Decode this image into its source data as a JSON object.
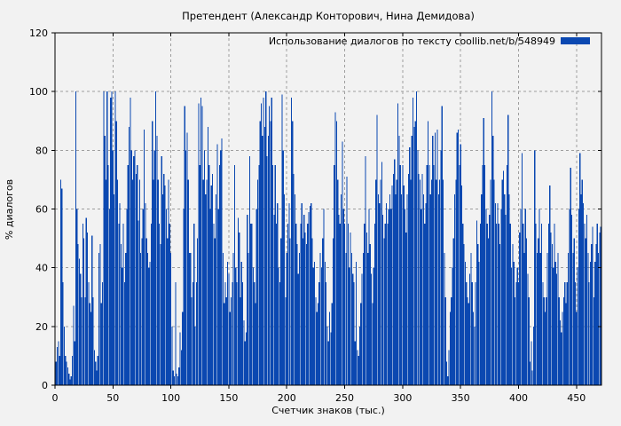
{
  "chart_data": {
    "type": "bar",
    "title": "Претендент (Александр Конторович, Нина Демидова)",
    "legend_label": "Использование диалогов по тексту  coollib.net/b/548949",
    "xlabel": "Счетчик знаков (тыс.)",
    "ylabel": "% диалогов",
    "legend_position": "top-right",
    "grid": true,
    "xlim": [
      0,
      471.6
    ],
    "ylim": [
      0,
      120
    ],
    "x_ticks": [
      0,
      50,
      100,
      150,
      200,
      250,
      300,
      350,
      400,
      450
    ],
    "y_ticks": [
      0,
      20,
      40,
      60,
      80,
      100,
      120
    ],
    "x_start": 0,
    "x_step": 1,
    "colors": {
      "bar": "#0B48B1",
      "background": "#f2f2f2",
      "grid": "#9e9e9e",
      "axis": "#000000",
      "text": "#000000"
    },
    "values": [
      5,
      8,
      13,
      15,
      10,
      70,
      67,
      35,
      20,
      10,
      8,
      6,
      4,
      2,
      3,
      10,
      27,
      15,
      100,
      60,
      48,
      43,
      38,
      30,
      55,
      50,
      30,
      57,
      52,
      35,
      28,
      25,
      51,
      30,
      12,
      8,
      5,
      10,
      45,
      48,
      28,
      35,
      100,
      85,
      70,
      100,
      75,
      60,
      98,
      100,
      80,
      65,
      100,
      90,
      70,
      55,
      62,
      48,
      40,
      55,
      35,
      45,
      60,
      75,
      88,
      98,
      80,
      70,
      78,
      80,
      72,
      75,
      56,
      70,
      45,
      50,
      60,
      87,
      62,
      50,
      45,
      40,
      42,
      55,
      90,
      70,
      80,
      100,
      85,
      70,
      55,
      48,
      78,
      65,
      72,
      68,
      60,
      50,
      70,
      55,
      45,
      20,
      5,
      3,
      35,
      4,
      3,
      6,
      18,
      12,
      25,
      60,
      95,
      80,
      86,
      70,
      45,
      45,
      30,
      35,
      55,
      20,
      35,
      50,
      96,
      75,
      98,
      95,
      70,
      80,
      65,
      70,
      88,
      75,
      60,
      68,
      72,
      55,
      50,
      65,
      82,
      60,
      75,
      80,
      84,
      45,
      28,
      35,
      30,
      42,
      38,
      25,
      30,
      35,
      45,
      75,
      40,
      35,
      57,
      52,
      30,
      42,
      35,
      22,
      15,
      18,
      58,
      45,
      78,
      55,
      55,
      40,
      35,
      28,
      60,
      70,
      75,
      90,
      96,
      85,
      98,
      88,
      100,
      78,
      85,
      95,
      90,
      98,
      75,
      58,
      75,
      55,
      62,
      40,
      35,
      50,
      99,
      80,
      65,
      30,
      45,
      55,
      62,
      50,
      98,
      90,
      72,
      65,
      55,
      48,
      38,
      45,
      55,
      62,
      50,
      58,
      52,
      48,
      55,
      59,
      61,
      62,
      50,
      40,
      42,
      30,
      25,
      28,
      35,
      45,
      40,
      50,
      60,
      42,
      35,
      20,
      15,
      25,
      18,
      28,
      50,
      75,
      93,
      90,
      70,
      58,
      55,
      65,
      83,
      60,
      55,
      45,
      71,
      55,
      40,
      52,
      45,
      38,
      35,
      15,
      42,
      12,
      10,
      20,
      28,
      38,
      45,
      55,
      78,
      52,
      45,
      60,
      48,
      38,
      28,
      40,
      55,
      70,
      92,
      65,
      62,
      70,
      76,
      58,
      50,
      55,
      62,
      55,
      60,
      65,
      60,
      68,
      72,
      77,
      65,
      70,
      96,
      85,
      75,
      65,
      75,
      68,
      60,
      52,
      65,
      72,
      81,
      70,
      85,
      98,
      88,
      90,
      100,
      80,
      72,
      70,
      60,
      72,
      65,
      55,
      62,
      75,
      90,
      75,
      65,
      70,
      85,
      75,
      86,
      70,
      87,
      65,
      70,
      80,
      95,
      70,
      45,
      30,
      8,
      3,
      12,
      25,
      30,
      40,
      50,
      65,
      70,
      86,
      87,
      75,
      82,
      68,
      55,
      48,
      42,
      35,
      30,
      28,
      38,
      45,
      35,
      25,
      20,
      35,
      56,
      48,
      42,
      55,
      65,
      75,
      91,
      75,
      60,
      55,
      50,
      58,
      70,
      100,
      85,
      70,
      62,
      55,
      62,
      55,
      48,
      60,
      70,
      73,
      65,
      58,
      75,
      92,
      65,
      55,
      40,
      48,
      42,
      30,
      35,
      40,
      35,
      52,
      60,
      79,
      55,
      45,
      60,
      50,
      38,
      30,
      8,
      15,
      5,
      20,
      80,
      55,
      45,
      50,
      60,
      45,
      55,
      35,
      30,
      25,
      30,
      45,
      55,
      68,
      52,
      48,
      40,
      55,
      42,
      38,
      45,
      30,
      22,
      18,
      25,
      30,
      35,
      28,
      35,
      45,
      60,
      74,
      58,
      45,
      50,
      35,
      25,
      40,
      60,
      79,
      65,
      70,
      62,
      55,
      50,
      58,
      45,
      35,
      42,
      48,
      54,
      30,
      42,
      48,
      55,
      45,
      52,
      54
    ]
  }
}
